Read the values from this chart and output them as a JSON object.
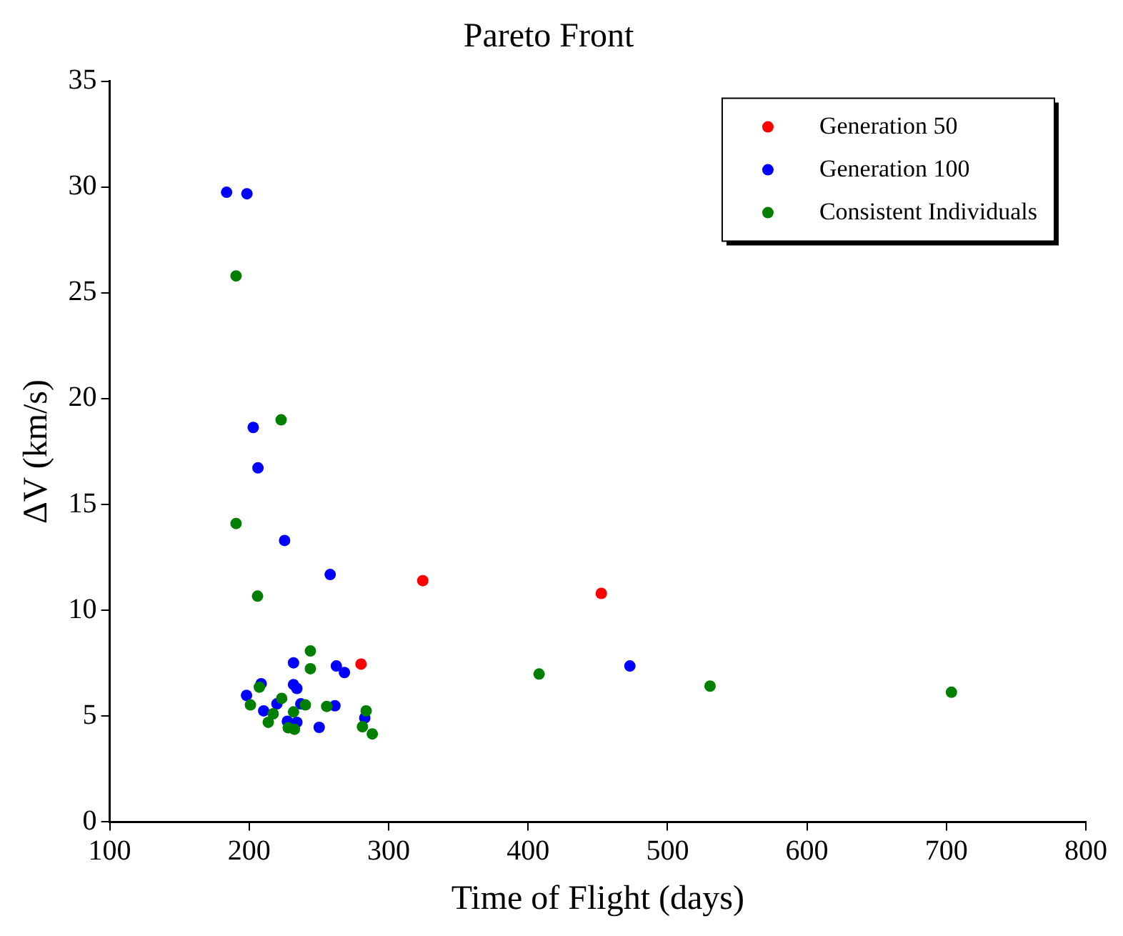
{
  "chart_data": {
    "type": "scatter",
    "title": "Pareto Front",
    "xlabel": "Time of Flight (days)",
    "ylabel": "ΔV (km/s)",
    "xlim": [
      100,
      800
    ],
    "xticks": [
      100,
      200,
      300,
      400,
      500,
      600,
      700,
      800
    ],
    "ylim": [
      0,
      35
    ],
    "yticks": [
      0,
      5,
      10,
      15,
      20,
      25,
      30,
      35
    ],
    "grid": false,
    "legend": "top right",
    "marker": "circle",
    "series": [
      {
        "name": "Generation 50",
        "color": "#ff0000",
        "x": [
          324.5,
          452.5,
          280.2
        ],
        "values": [
          11.4,
          10.8,
          7.46
        ]
      },
      {
        "name": "Generation 100",
        "color": "#0000ff",
        "x": [
          183.8,
          198.4,
          202.9,
          206.3,
          225.4,
          258.1,
          473,
          231.8,
          262.5,
          268.3,
          198.1,
          208.6,
          231.8,
          234.2,
          210.4,
          219.9,
          237.0,
          250.2,
          261.5,
          234.2,
          227.4,
          282.9
        ],
        "values": [
          29.75,
          29.68,
          18.64,
          16.73,
          13.3,
          11.69,
          7.37,
          7.52,
          7.37,
          7.06,
          5.98,
          6.53,
          6.49,
          6.31,
          5.25,
          5.58,
          5.58,
          4.47,
          5.49,
          4.71,
          4.76,
          4.91
        ]
      },
      {
        "name": "Consistent Individuals",
        "color": "#007f00",
        "x": [
          190.6,
          222.9,
          190.6,
          206.0,
          243.9,
          243.9,
          200.9,
          207.3,
          223.3,
          213.7,
          217.2,
          231.8,
          240.3,
          228.0,
          232.5,
          255.6,
          283.9,
          281.2,
          288.3,
          407.9,
          530.5,
          703.6
        ],
        "values": [
          25.8,
          19.0,
          14.1,
          10.67,
          8.08,
          7.24,
          5.53,
          6.37,
          5.84,
          4.71,
          5.11,
          5.2,
          5.53,
          4.45,
          4.38,
          5.46,
          5.25,
          4.5,
          4.16,
          6.99,
          6.42,
          6.13
        ]
      }
    ]
  }
}
